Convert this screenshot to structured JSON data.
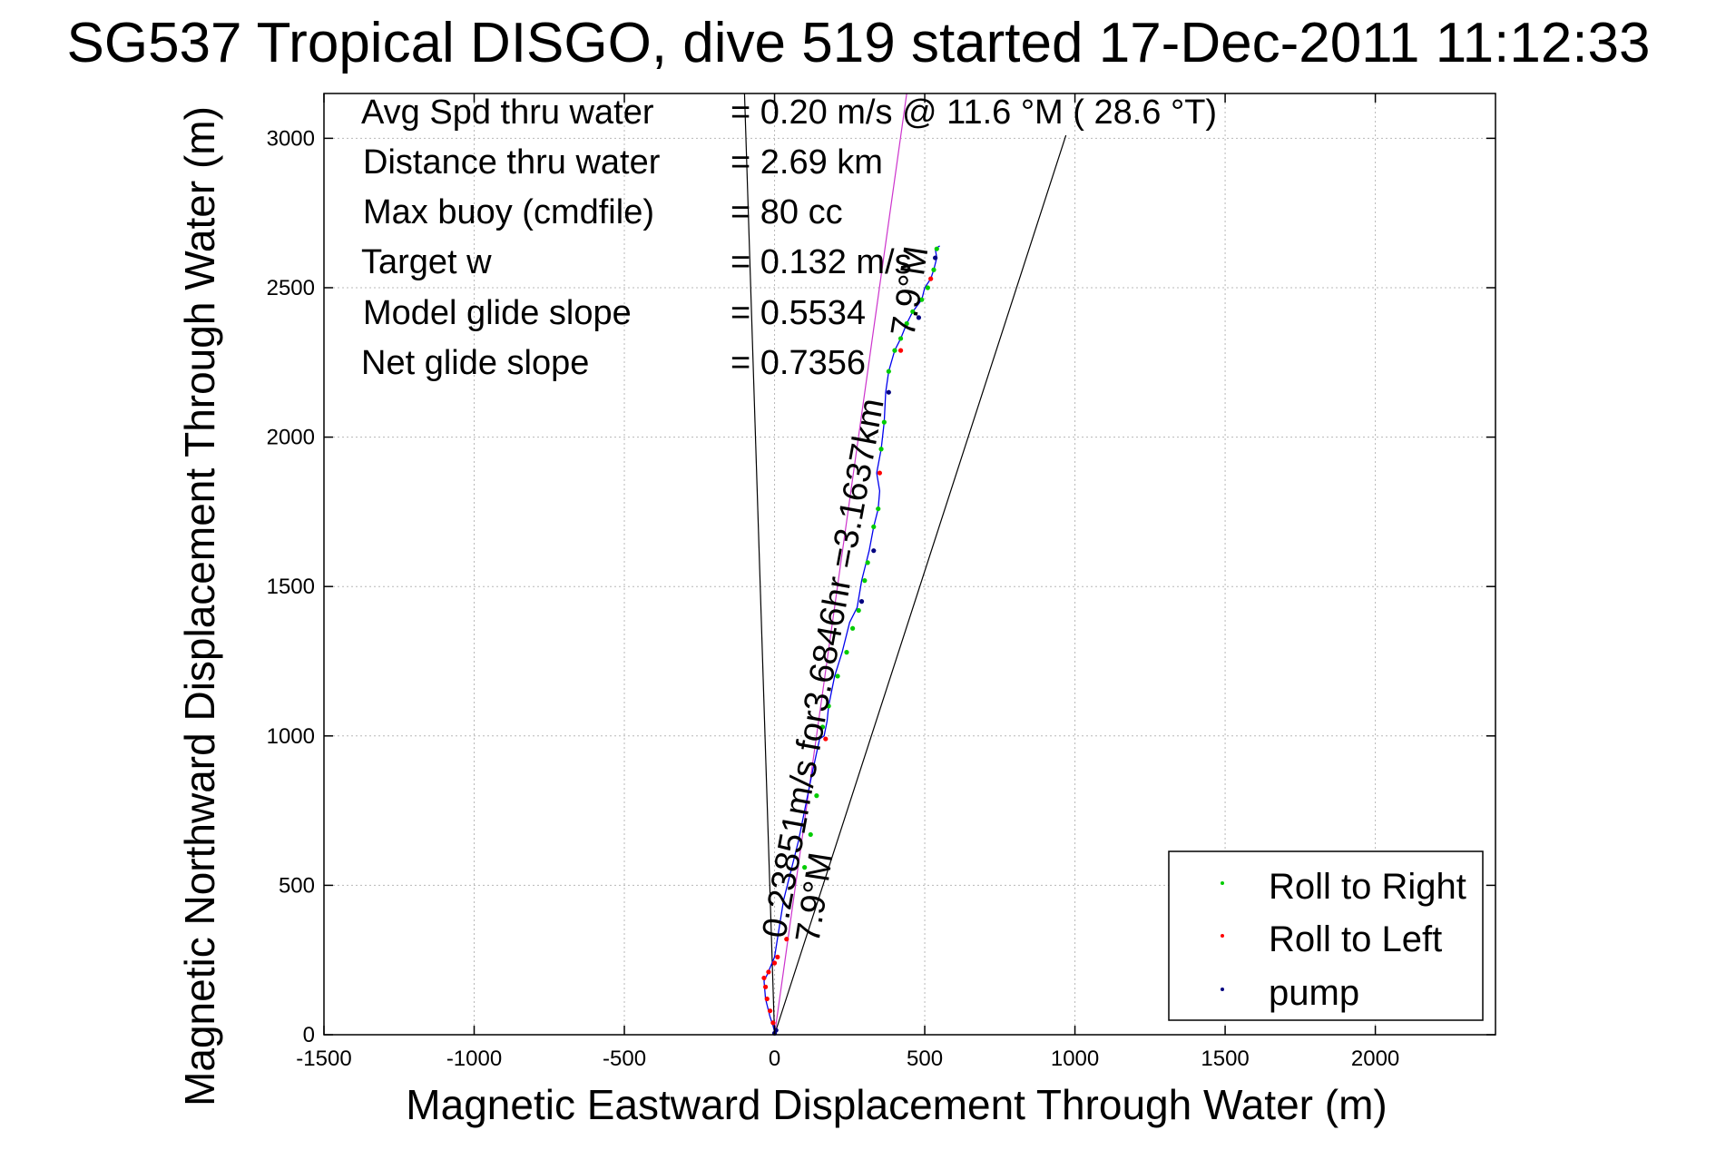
{
  "chart_data": {
    "type": "scatter",
    "title": "SG537 Tropical DISGO, dive 519 started 17-Dec-2011 11:12:33",
    "xlabel": "Magnetic Eastward Displacement Through Water (m)",
    "ylabel": "Magnetic Northward Displacement Through Water (m)",
    "xlim": [
      -1500,
      2400
    ],
    "ylim": [
      0,
      3150
    ],
    "xticks": [
      -1500,
      -1000,
      -500,
      0,
      500,
      1000,
      1500,
      2000
    ],
    "yticks": [
      0,
      500,
      1000,
      1500,
      2000,
      2500,
      3000
    ],
    "xtick_labels": [
      "-1500",
      "-1000",
      "-500",
      "0",
      "500",
      "1000",
      "1500",
      "2000"
    ],
    "ytick_labels": [
      "0",
      "500",
      "1000",
      "1500",
      "2000",
      "2500",
      "3000"
    ],
    "grid": true,
    "legend_position": "bottom-right",
    "info": [
      {
        "label": "Avg Spd thru water",
        "value": "=  0.20 m/s @  11.6 °M ( 28.6 °T)"
      },
      {
        "label": "Distance thru water",
        "value": "=  2.69 km"
      },
      {
        "label": "Max buoy (cmdfile)",
        "value": "= 80 cc"
      },
      {
        "label": "Target w",
        "value": "= 0.132 m/s"
      },
      {
        "label": "Model glide slope",
        "value": "= 0.5534"
      },
      {
        "label": "Net glide slope",
        "value": "= 0.7356"
      }
    ],
    "annotations": {
      "current_text": "0.23851m/s for3.6846hr =3.1637km",
      "angle_text_bottom": "7.9°M",
      "angle_text_top": "7.9°M"
    },
    "reference_lines": [
      {
        "from": [
          0,
          0
        ],
        "to": [
          -100,
          3150
        ]
      },
      {
        "from": [
          0,
          0
        ],
        "to": [
          970,
          3010
        ]
      },
      {
        "from": [
          0,
          0
        ],
        "to": [
          440,
          3150
        ]
      }
    ],
    "track": {
      "x": [
        0,
        -5,
        -15,
        -30,
        -35,
        -25,
        0,
        30,
        80,
        120,
        150,
        165,
        175,
        180,
        200,
        225,
        250,
        275,
        290,
        305,
        315,
        330,
        345,
        350,
        340,
        355,
        365,
        370,
        380,
        400,
        420,
        440,
        460,
        490,
        500,
        520,
        530,
        540,
        535,
        550
      ],
      "y": [
        10,
        30,
        60,
        120,
        180,
        200,
        260,
        450,
        650,
        850,
        990,
        1000,
        1050,
        1100,
        1200,
        1280,
        1380,
        1430,
        1520,
        1580,
        1620,
        1700,
        1760,
        1820,
        1880,
        1960,
        2050,
        2150,
        2220,
        2290,
        2330,
        2380,
        2420,
        2460,
        2500,
        2530,
        2560,
        2600,
        2630,
        2640
      ]
    },
    "series": [
      {
        "name": "Roll to Right",
        "color": "#00cc00",
        "x": [
          330,
          345,
          355,
          365,
          380,
          400,
          420,
          440,
          460,
          490,
          510,
          530,
          540,
          310,
          300,
          280,
          260,
          240,
          210,
          180,
          160,
          140,
          120,
          100
        ],
        "y": [
          1700,
          1760,
          1960,
          2050,
          2220,
          2290,
          2330,
          2380,
          2420,
          2460,
          2500,
          2560,
          2630,
          1580,
          1520,
          1420,
          1360,
          1280,
          1200,
          1100,
          1030,
          800,
          670,
          560
        ]
      },
      {
        "name": "Roll to Left",
        "color": "#ff0000",
        "x": [
          -5,
          -15,
          -25,
          -30,
          -35,
          -20,
          0,
          10,
          40,
          170,
          350,
          420,
          520
        ],
        "y": [
          40,
          80,
          120,
          160,
          190,
          210,
          240,
          260,
          320,
          990,
          1880,
          2290,
          2530
        ]
      },
      {
        "name": "pump",
        "color": "#000080",
        "x": [
          0,
          5,
          290,
          330,
          380,
          480,
          535
        ],
        "y": [
          5,
          15,
          1450,
          1620,
          2150,
          2400,
          2600
        ]
      }
    ]
  }
}
